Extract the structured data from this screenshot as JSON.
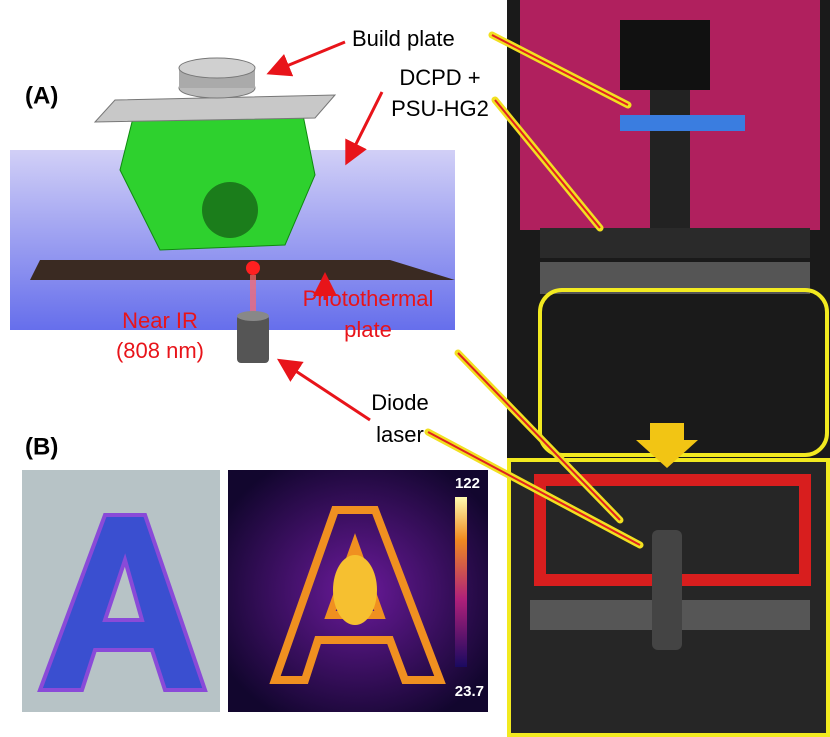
{
  "panel_a": {
    "tag": "(A)",
    "build_plate": "Build plate",
    "resin": [
      "DCPD +",
      "PSU-HG2"
    ],
    "near_ir": [
      "Near IR",
      "(808 nm)"
    ],
    "photothermal": [
      "Photothermal",
      "plate"
    ],
    "diode": [
      "Diode",
      "laser"
    ]
  },
  "panel_b": {
    "tag": "(B)",
    "colorbar": {
      "max": 122,
      "min": 23.7
    }
  }
}
